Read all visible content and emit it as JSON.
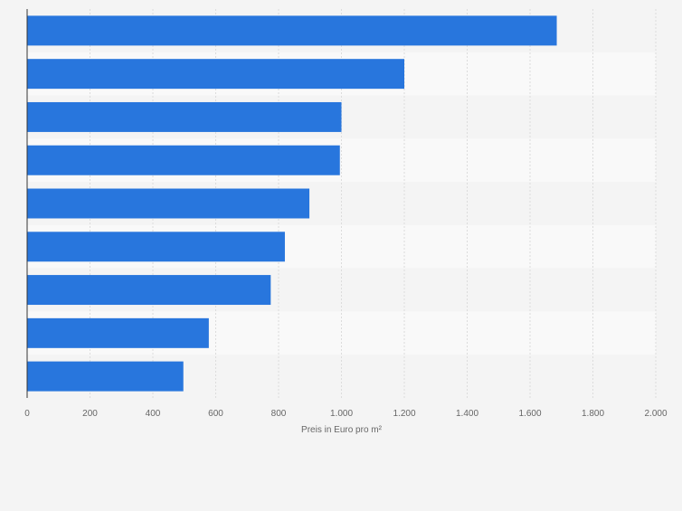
{
  "chart_data": {
    "type": "bar",
    "orientation": "horizontal",
    "title": "",
    "xlabel": "Preis in Euro pro m²",
    "ylabel": "",
    "categories": [
      "",
      "",
      "",
      "",
      "",
      "",
      "",
      "",
      ""
    ],
    "values": [
      1685,
      1200,
      1000,
      995,
      898,
      820,
      775,
      578,
      497
    ],
    "xlim": [
      0,
      2000
    ],
    "ticks": [
      0,
      200,
      400,
      600,
      800,
      1000,
      1200,
      1400,
      1600,
      1800,
      2000
    ],
    "tick_labels": [
      "0",
      "200",
      "400",
      "600",
      "800",
      "1.000",
      "1.200",
      "1.400",
      "1.600",
      "1.800",
      "2.000"
    ],
    "grid": true,
    "legend": "none",
    "colors": {
      "bar": "#2876dd",
      "band_dark": "#f4f4f4",
      "band_light": "#f9f9f9",
      "grid": "#dcdcdc",
      "axis": "#333333",
      "text": "#666666"
    }
  }
}
